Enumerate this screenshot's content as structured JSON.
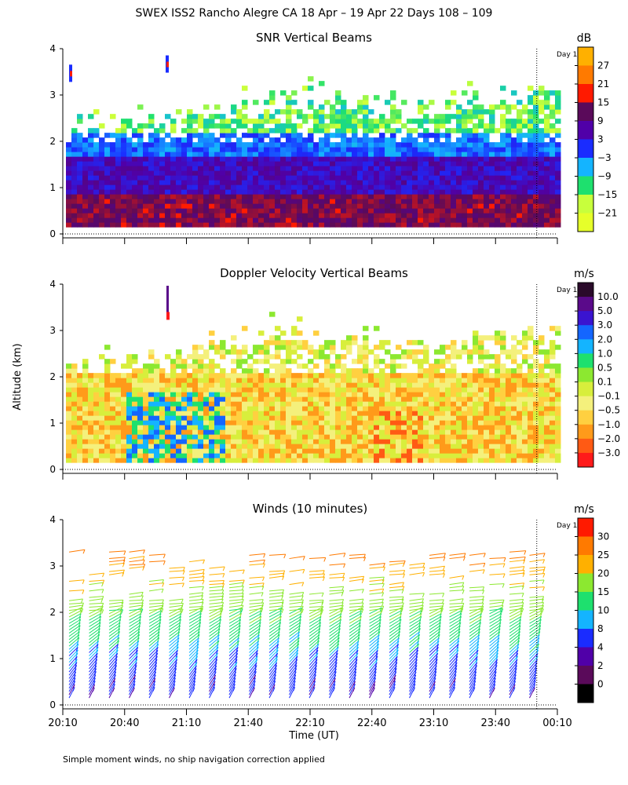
{
  "figure": {
    "title": "SWEX ISS2 Rancho Alegre CA  18 Apr – 19 Apr 22 Days 108 – 109",
    "y_axis_label": "Altitude (km)",
    "x_axis_label": "Time (UT)",
    "footnote": "Simple moment winds, no ship navigation correction applied",
    "day_marker_label": "Day 1",
    "x_ticks": [
      "20:10",
      "20:40",
      "21:10",
      "21:40",
      "22:10",
      "22:40",
      "23:10",
      "23:40",
      "00:10"
    ],
    "y_ticks": [
      "0",
      "1",
      "2",
      "3",
      "4"
    ]
  },
  "chart_data": [
    {
      "type": "heatmap",
      "title": "SNR Vertical Beams",
      "x_range": [
        "20:10",
        "00:10"
      ],
      "ylim": [
        0,
        4
      ],
      "y_unit": "km",
      "day_boundary_time": "00:00",
      "colorbar": {
        "unit": "dB",
        "labels": [
          "27",
          "21",
          "15",
          "9",
          "3",
          "−3",
          "−9",
          "−15",
          "−21"
        ],
        "colors": [
          "#ffb000",
          "#ff7a00",
          "#ff1a00",
          "#5a0a5a",
          "#5000a8",
          "#1a2cff",
          "#14b4ff",
          "#1ee06e",
          "#c8ff3c",
          "#e6ff2a"
        ]
      },
      "profile": [
        {
          "alt_km": "0.1-0.9",
          "snr_db": "3 to 9",
          "color": "#3c0a7a"
        },
        {
          "alt_km": "0.9-1.6",
          "snr_db": "-3 to 3",
          "color": "#1a2cff"
        },
        {
          "alt_km": "1.6-2.1",
          "snr_db": "-9 to -3",
          "color": "#14b4ff"
        },
        {
          "alt_km": "2.1-3.2",
          "snr_db": "-21 to -9",
          "color": "#1ee06e"
        }
      ],
      "echo_top_km": [
        {
          "time": "20:10",
          "top_km": 2.1
        },
        {
          "time": "21:00",
          "top_km": 2.4
        },
        {
          "time": "22:00",
          "top_km": 2.9
        },
        {
          "time": "23:00",
          "top_km": 2.6
        },
        {
          "time": "00:10",
          "top_km": 3.0
        }
      ]
    },
    {
      "type": "heatmap",
      "title": "Doppler Velocity Vertical Beams",
      "x_range": [
        "20:10",
        "00:10"
      ],
      "ylim": [
        0,
        4
      ],
      "y_unit": "km",
      "day_boundary_time": "00:00",
      "colorbar": {
        "unit": "m/s",
        "labels": [
          "10.0",
          "5.0",
          "3.0",
          "2.0",
          "1.0",
          "0.5",
          "0.1",
          "−0.1",
          "−0.5",
          "−1.0",
          "−2.0",
          "−3.0"
        ],
        "colors": [
          "#2a0a2a",
          "#5a0a8a",
          "#3a14d0",
          "#1466ff",
          "#14b4ff",
          "#1ee06e",
          "#8ce830",
          "#d8ee3c",
          "#f4f07c",
          "#ffd040",
          "#ff9a1a",
          "#ff5a14",
          "#ff1a1a"
        ]
      },
      "profile": [
        {
          "alt_km": "0.1-2.0",
          "velocity_ms": "-1.0 to 0.1",
          "color": "#ffb030"
        },
        {
          "alt_km": "0.3-1.6",
          "velocity_ms": "0.1 to 1.0",
          "color": "#1ee06e"
        },
        {
          "alt_km": "2.0-3.0",
          "velocity_ms": "0.1 to 1.0",
          "color": "#8ce830"
        }
      ]
    },
    {
      "type": "scatter",
      "title": "Winds (10 minutes)",
      "x_range": [
        "20:10",
        "00:10"
      ],
      "ylim": [
        0,
        4
      ],
      "y_unit": "km",
      "day_boundary_time": "00:00",
      "colorbar": {
        "unit": "m/s",
        "labels": [
          "30",
          "25",
          "20",
          "15",
          "10",
          "8",
          "4",
          "2",
          "0"
        ],
        "colors": [
          "#ff1a00",
          "#ff7a00",
          "#ffb000",
          "#8ce830",
          "#1ee06e",
          "#14b4ff",
          "#1a2cff",
          "#5000a8",
          "#5a0a5a",
          "#000000"
        ]
      },
      "profile_speed_ms": [
        {
          "alt_km": 0.5,
          "speed": 6
        },
        {
          "alt_km": 1.0,
          "speed": 8
        },
        {
          "alt_km": 1.5,
          "speed": 12
        },
        {
          "alt_km": 2.0,
          "speed": 16
        },
        {
          "alt_km": 2.5,
          "speed": 19
        },
        {
          "alt_km": 3.0,
          "speed": 24
        },
        {
          "alt_km": 3.3,
          "speed": 28
        }
      ]
    }
  ]
}
